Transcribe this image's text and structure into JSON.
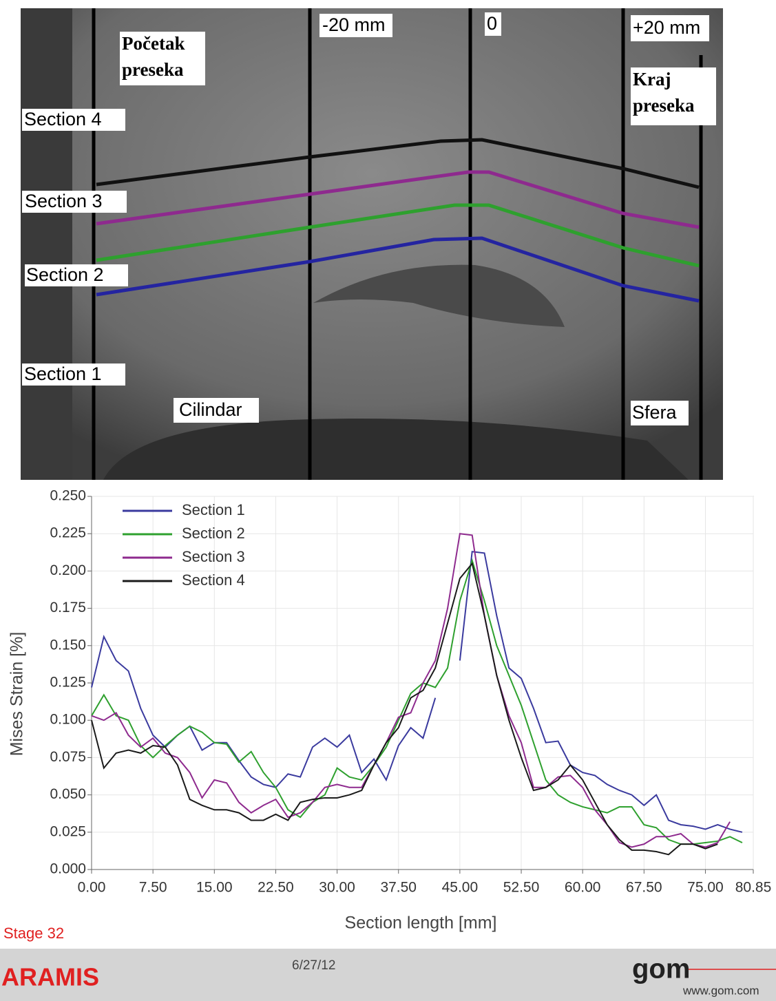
{
  "photo": {
    "markers": [
      "-20 mm",
      "0",
      "+20 mm"
    ],
    "start": [
      "Početak",
      "preseka"
    ],
    "end": [
      "Kraj",
      "preseka"
    ],
    "sections": [
      "Section 4",
      "Section 3",
      "Section 2",
      "Section 1"
    ],
    "left": "Cilindar",
    "right": "Sfera"
  },
  "chart_data": {
    "type": "line",
    "x_label": "Section length [mm]",
    "y_label": "Mises Strain [%]",
    "xlim": [
      0,
      80.85
    ],
    "ylim": [
      0,
      0.25
    ],
    "grid": true,
    "legend": "upper-left",
    "xticks": [
      {
        "value": 0,
        "label": "0.00"
      },
      {
        "value": 7.5,
        "label": "7.50"
      },
      {
        "value": 15,
        "label": "15.00"
      },
      {
        "value": 22.5,
        "label": "22.50"
      },
      {
        "value": 30,
        "label": "30.00"
      },
      {
        "value": 37.5,
        "label": "37.50"
      },
      {
        "value": 45,
        "label": "45.00"
      },
      {
        "value": 52.5,
        "label": "52.50"
      },
      {
        "value": 60,
        "label": "60.00"
      },
      {
        "value": 67.5,
        "label": "67.50"
      },
      {
        "value": 75,
        "label": "75.00"
      },
      80.85
    ],
    "yticks": [
      {
        "value": 0,
        "label": "0.000"
      },
      {
        "value": 0.025,
        "label": "0.025"
      },
      {
        "value": 0.05,
        "label": "0.050"
      },
      {
        "value": 0.075,
        "label": "0.075"
      },
      {
        "value": 0.1,
        "label": "0.100"
      },
      {
        "value": 0.125,
        "label": "0.125"
      },
      {
        "value": 0.15,
        "label": "0.150"
      },
      {
        "value": 0.175,
        "label": "0.175"
      },
      {
        "value": 0.2,
        "label": "0.200"
      },
      {
        "value": 0.225,
        "label": "0.225"
      },
      {
        "value": 0.25,
        "label": "0.250"
      }
    ],
    "x": [
      0,
      1.5,
      3,
      4.5,
      6,
      7.5,
      9,
      10.5,
      12,
      13.5,
      15,
      16.5,
      18,
      19.5,
      21,
      22.5,
      24,
      25.5,
      27,
      28.5,
      30,
      31.5,
      33,
      34.5,
      36,
      37.5,
      39,
      40.5,
      42,
      43.5,
      45,
      46.5,
      48,
      49.5,
      51,
      52.5,
      54,
      55.5,
      57,
      58.5,
      60,
      61.5,
      63,
      64.5,
      66,
      67.5,
      69,
      70.5,
      72,
      73.5,
      75,
      76.5,
      78,
      79.5
    ],
    "series": [
      {
        "name": "Section 1",
        "color": "#3a3a9e",
        "values": [
          0.122,
          0.156,
          0.14,
          0.133,
          0.108,
          0.09,
          0.082,
          0.09,
          0.096,
          0.08,
          0.085,
          0.085,
          0.073,
          0.062,
          0.057,
          0.055,
          0.064,
          0.062,
          0.082,
          0.088,
          0.082,
          0.09,
          0.065,
          0.074,
          0.06,
          0.083,
          0.095,
          0.088,
          0.115,
          null,
          0.14,
          0.213,
          0.212,
          0.17,
          0.135,
          0.128,
          0.108,
          0.085,
          0.086,
          0.07,
          0.065,
          0.063,
          0.057,
          0.053,
          0.05,
          0.043,
          0.05,
          0.033,
          0.03,
          0.029,
          0.027,
          0.03,
          0.027,
          0.025
        ]
      },
      {
        "name": "Section 2",
        "color": "#2ea02e",
        "values": [
          0.103,
          0.117,
          0.103,
          0.1,
          0.083,
          0.075,
          0.083,
          0.09,
          0.096,
          0.092,
          0.085,
          0.084,
          0.072,
          0.079,
          0.065,
          0.055,
          0.04,
          0.035,
          0.045,
          0.05,
          0.068,
          0.062,
          0.06,
          0.07,
          0.082,
          0.1,
          0.118,
          0.125,
          0.122,
          0.135,
          0.18,
          0.207,
          0.18,
          0.15,
          0.13,
          0.11,
          0.085,
          0.06,
          0.05,
          0.045,
          0.042,
          0.04,
          0.038,
          0.042,
          0.042,
          0.03,
          0.028,
          0.02,
          0.017,
          0.017,
          0.018,
          0.019,
          0.022,
          0.018
        ]
      },
      {
        "name": "Section 3",
        "color": "#8e2a8e",
        "values": [
          0.103,
          0.1,
          0.105,
          0.09,
          0.082,
          0.088,
          0.078,
          0.075,
          0.065,
          0.048,
          0.06,
          0.058,
          0.045,
          0.038,
          0.043,
          0.047,
          0.035,
          0.038,
          0.045,
          0.055,
          0.057,
          0.055,
          0.055,
          0.07,
          0.085,
          0.102,
          0.105,
          0.125,
          0.14,
          0.175,
          0.225,
          0.224,
          0.17,
          0.13,
          0.103,
          0.085,
          0.055,
          0.055,
          0.062,
          0.063,
          0.055,
          0.04,
          0.03,
          0.018,
          0.015,
          0.017,
          0.022,
          0.022,
          0.024,
          0.017,
          0.015,
          0.018,
          0.032,
          null
        ]
      },
      {
        "name": "Section 4",
        "color": "#1a1a1a",
        "values": [
          0.1,
          0.068,
          0.078,
          0.08,
          0.078,
          0.083,
          0.082,
          0.07,
          0.047,
          0.043,
          0.04,
          0.04,
          0.038,
          0.033,
          0.033,
          0.037,
          0.033,
          0.045,
          0.047,
          0.048,
          0.048,
          0.05,
          0.053,
          0.07,
          0.085,
          0.095,
          0.115,
          0.12,
          0.135,
          0.165,
          0.195,
          0.205,
          0.17,
          0.13,
          0.1,
          0.075,
          0.053,
          0.055,
          0.06,
          0.07,
          0.06,
          0.045,
          0.03,
          0.02,
          0.013,
          0.013,
          0.012,
          0.01,
          0.017,
          0.017,
          0.014,
          0.017,
          null,
          null
        ]
      }
    ]
  },
  "footer": {
    "stage": "Stage 32",
    "product": "ARAMIS",
    "date": "6/27/12",
    "logo": "gom",
    "url": "www.gom.com"
  }
}
